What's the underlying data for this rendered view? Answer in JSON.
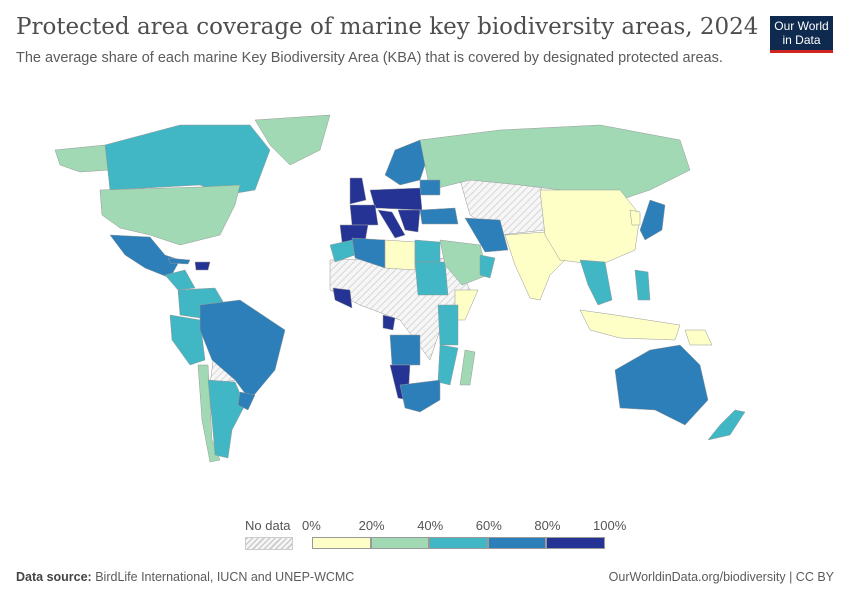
{
  "header": {
    "title": "Protected area coverage of marine key biodiversity areas, 2024",
    "subtitle": "The average share of each marine Key Biodiversity Area (KBA) that is covered by designated protected areas.",
    "logo": {
      "line1": "Our World",
      "line2": "in Data"
    }
  },
  "chart_data": {
    "type": "choropleth",
    "legend": {
      "no_data_label": "No data",
      "ticks": [
        "0%",
        "20%",
        "40%",
        "60%",
        "80%",
        "100%"
      ],
      "bins": [
        {
          "range": "0-20%",
          "color": "#fefec7"
        },
        {
          "range": "20-40%",
          "color": "#a1d9b4"
        },
        {
          "range": "40-60%",
          "color": "#41b6c4"
        },
        {
          "range": "60-80%",
          "color": "#2c7fb8"
        },
        {
          "range": "80-100%",
          "color": "#253494"
        }
      ],
      "no_data_pattern": "hatched-gray"
    },
    "region_bins": {
      "canada": 2,
      "alaska": 1,
      "greenland": 1,
      "usa": 1,
      "mexico": 3,
      "central-america": 2,
      "cuba": 3,
      "hispaniola": 4,
      "colombia-venezuela": 2,
      "peru-ecuador": 2,
      "brazil": 3,
      "argentina": 2,
      "chile": 1,
      "uruguay": 3,
      "uk": 4,
      "france": 4,
      "spain-portugal": 4,
      "scandinavia": 3,
      "germany-poland": 4,
      "italy": 4,
      "greece-balkans": 4,
      "turkey": 3,
      "baltic": 3,
      "russia": 1,
      "china": 0,
      "india": 0,
      "iran": 3,
      "saudi-arabia": 1,
      "oman": 2,
      "morocco": 2,
      "algeria": 3,
      "libya": 0,
      "egypt": 2,
      "west-africa-coast": 4,
      "gulf-guinea": 4,
      "angola": 3,
      "namibia": 4,
      "south-africa": 3,
      "mozambique": 2,
      "tanzania-kenya": 2,
      "madagascar": 1,
      "somalia": 0,
      "sudan": 2,
      "japan": 3,
      "korea": 0,
      "southeast-asia": 2,
      "philippines": 2,
      "indonesia": 0,
      "papua-new-guinea": 0,
      "australia": 3,
      "new-zealand": 2
    }
  },
  "footer": {
    "source_label": "Data source:",
    "source": "BirdLife International, IUCN and UNEP-WCMC",
    "url": "OurWorldinData.org/biodiversity | CC BY"
  }
}
